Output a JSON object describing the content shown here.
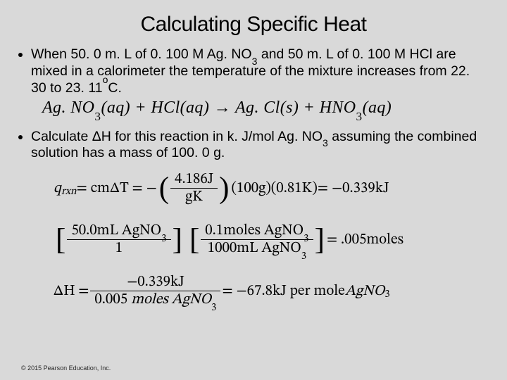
{
  "title": "Calculating Specific Heat",
  "bullets": {
    "b1_a": "When 50. 0 m. L of 0. 100 M Ag. NO",
    "b1_b": " and 50 m. L of 0. 100 M HCl are mixed in a calorimeter the temperature of the mixture increases from 22. 30 to 23. 11",
    "b1_sub1": "3",
    "b1_sup": "o",
    "b1_c": "C.",
    "b2_a": "Calculate ",
    "b2_delta": "Δ",
    "b2_b": "H for this reaction in k. J/mol Ag. NO",
    "b2_sub": "3",
    "b2_c": " assuming the combined solution has a mass of 100. 0 g."
  },
  "reaction": {
    "r1": "Ag. NO",
    "r1sub": "3",
    "aq1": "(aq) + HCl(aq) → Ag. Cl(s) + HNO",
    "r2sub": "3",
    "aq2": "(aq)"
  },
  "eq1": {
    "lhs_q": "q",
    "lhs_rxn": "rxn",
    "eq": " = cmΔT = − ",
    "num": "4.186J",
    "den": "gK",
    "m": " (100g)(0.81K) ",
    "rhs": "= −0.339kJ"
  },
  "eq2": {
    "num1": "50.0mL AgNO",
    "den1": "1",
    "num2": "0.1moles AgNO",
    "den2": "1000mL AgNO",
    "sub": "3",
    "rhs": " = .005moles"
  },
  "eq3": {
    "dH": "ΔH = ",
    "num": "−0.339kJ",
    "den_a": "0.005 ",
    "den_b": "moles AgNO",
    "den_sub": "3",
    "rhs_a": " = −67.8kJ per mole ",
    "rhs_b": "AgNO",
    "rhs_sub": "3"
  },
  "copyright": "© 2015 Pearson Education, Inc."
}
